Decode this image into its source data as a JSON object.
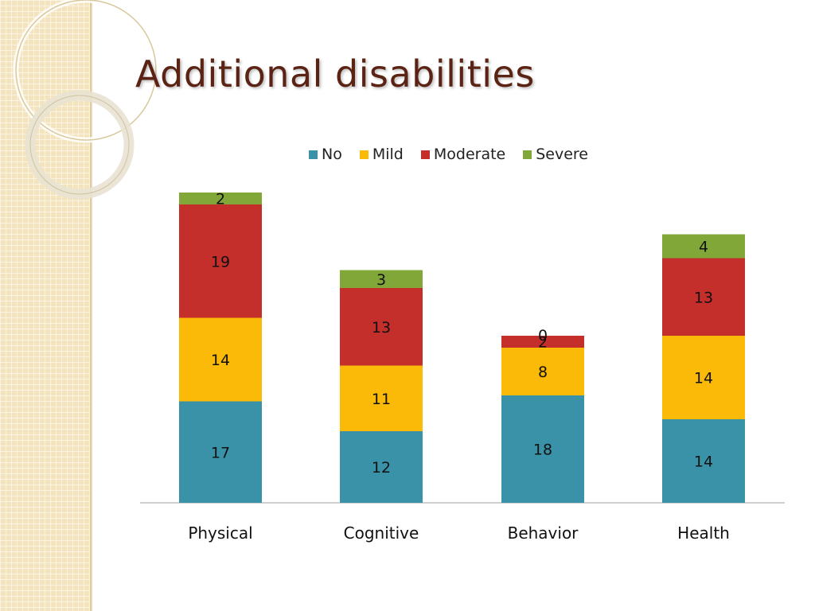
{
  "slide": {
    "title": "Additional disabilities"
  },
  "colors": {
    "no": "#3a92a8",
    "mild": "#fbb908",
    "moderate": "#c42f2c",
    "severe": "#82a739",
    "title": "#5b2314",
    "axis": "#bdbdbd"
  },
  "chart_data": {
    "type": "bar",
    "stacked": true,
    "title": "",
    "xlabel": "",
    "ylabel": "",
    "categories": [
      "Physical",
      "Cognitive",
      "Behavior",
      "Health"
    ],
    "series": [
      {
        "name": "No",
        "color": "#3a92a8",
        "values": [
          17,
          12,
          18,
          14
        ]
      },
      {
        "name": "Mild",
        "color": "#fbb908",
        "values": [
          14,
          11,
          8,
          14
        ]
      },
      {
        "name": "Moderate",
        "color": "#c42f2c",
        "values": [
          19,
          13,
          2,
          13
        ]
      },
      {
        "name": "Severe",
        "color": "#82a739",
        "values": [
          2,
          3,
          0,
          4
        ]
      }
    ],
    "ylim": [
      0,
      52
    ],
    "legend": "top",
    "grid": false,
    "data_labels": true
  }
}
